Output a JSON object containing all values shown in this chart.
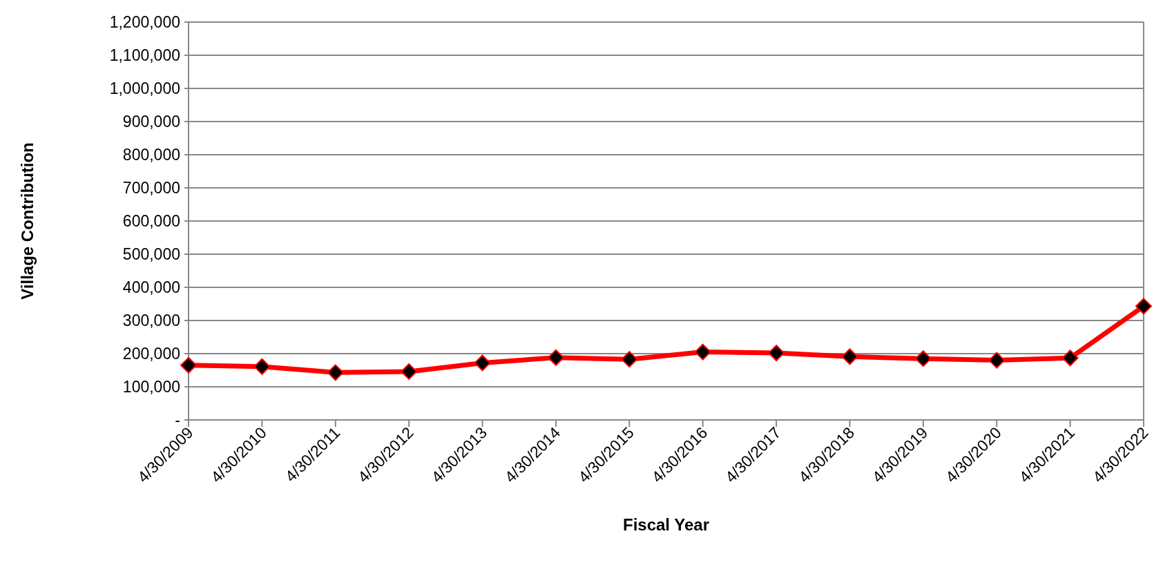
{
  "chart_data": {
    "type": "line",
    "xlabel": "Fiscal Year",
    "ylabel": "Village Contribution",
    "categories": [
      "4/30/2009",
      "4/30/2010",
      "4/30/2011",
      "4/30/2012",
      "4/30/2013",
      "4/30/2014",
      "4/30/2015",
      "4/30/2016",
      "4/30/2017",
      "4/30/2018",
      "4/30/2019",
      "4/30/2020",
      "4/30/2021",
      "4/30/2022"
    ],
    "series": [
      {
        "color": "#ff0000",
        "values": [
          165000,
          161000,
          143000,
          146000,
          172000,
          188000,
          183000,
          205000,
          202000,
          191000,
          185000,
          180000,
          187000,
          343000
        ]
      }
    ],
    "ylim": [
      0,
      1200000
    ],
    "yticks": [
      {
        "value": 0,
        "label": "-"
      },
      {
        "value": 100000,
        "label": "100,000"
      },
      {
        "value": 200000,
        "label": "200,000"
      },
      {
        "value": 300000,
        "label": "300,000"
      },
      {
        "value": 400000,
        "label": "400,000"
      },
      {
        "value": 500000,
        "label": "500,000"
      },
      {
        "value": 600000,
        "label": "600,000"
      },
      {
        "value": 700000,
        "label": "700,000"
      },
      {
        "value": 800000,
        "label": "800,000"
      },
      {
        "value": 900000,
        "label": "900,000"
      },
      {
        "value": 1000000,
        "label": "1,000,000"
      },
      {
        "value": 1100000,
        "label": "1,100,000"
      },
      {
        "value": 1200000,
        "label": "1,200,000"
      }
    ],
    "grid": "y",
    "marker": "diamond",
    "line_style": "solid"
  }
}
